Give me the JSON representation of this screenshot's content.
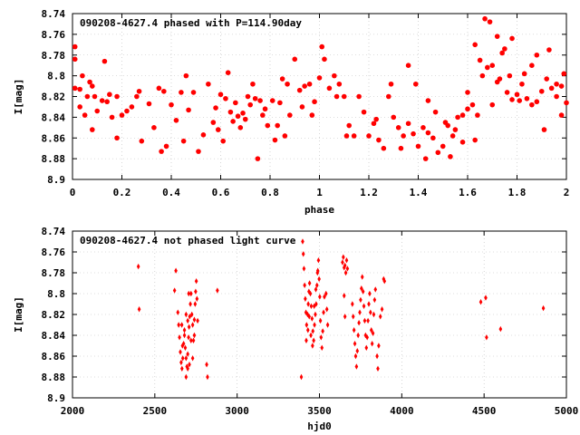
{
  "chart_data": [
    {
      "type": "scatter",
      "title": "090208-4627.4 phased with P=114.90day",
      "xlabel": "phase",
      "ylabel": "I[mag]",
      "xlim": [
        0,
        2
      ],
      "ylim": [
        8.9,
        8.74
      ],
      "y_inverted": true,
      "grid": true,
      "color": "#ff0000",
      "marker": "filled-circle",
      "x_ticks": [
        "0",
        "0.2",
        "0.4",
        "0.6",
        "0.8",
        "1",
        "1.2",
        "1.4",
        "1.6",
        "1.8",
        "2"
      ],
      "y_ticks": [
        "8.74",
        "8.76",
        "8.78",
        "8.8",
        "8.82",
        "8.84",
        "8.86",
        "8.88",
        "8.9"
      ],
      "points": [
        [
          0.01,
          8.772
        ],
        [
          0.01,
          8.784
        ],
        [
          0.01,
          8.812
        ],
        [
          0.03,
          8.813
        ],
        [
          0.03,
          8.83
        ],
        [
          0.04,
          8.8
        ],
        [
          0.05,
          8.838
        ],
        [
          0.06,
          8.82
        ],
        [
          0.07,
          8.806
        ],
        [
          0.08,
          8.81
        ],
        [
          0.09,
          8.82
        ],
        [
          0.1,
          8.834
        ],
        [
          0.12,
          8.824
        ],
        [
          0.13,
          8.786
        ],
        [
          0.14,
          8.825
        ],
        [
          0.15,
          8.818
        ],
        [
          0.16,
          8.84
        ],
        [
          0.18,
          8.82
        ],
        [
          0.2,
          8.838
        ],
        [
          0.22,
          8.834
        ],
        [
          0.24,
          8.83
        ],
        [
          0.26,
          8.82
        ],
        [
          0.28,
          8.863
        ],
        [
          0.31,
          8.827
        ],
        [
          0.33,
          8.85
        ],
        [
          0.35,
          8.812
        ],
        [
          0.37,
          8.815
        ],
        [
          0.38,
          8.868
        ],
        [
          0.4,
          8.828
        ],
        [
          0.42,
          8.843
        ],
        [
          0.44,
          8.816
        ],
        [
          0.46,
          8.8
        ],
        [
          0.47,
          8.833
        ],
        [
          0.49,
          8.816
        ],
        [
          0.51,
          8.873
        ],
        [
          0.55,
          8.808
        ],
        [
          0.57,
          8.845
        ],
        [
          0.58,
          8.831
        ],
        [
          0.59,
          8.852
        ],
        [
          0.6,
          8.818
        ],
        [
          0.61,
          8.863
        ],
        [
          0.62,
          8.822
        ],
        [
          0.63,
          8.797
        ],
        [
          0.65,
          8.844
        ],
        [
          0.66,
          8.826
        ],
        [
          0.67,
          8.839
        ],
        [
          0.68,
          8.85
        ],
        [
          0.69,
          8.836
        ],
        [
          0.7,
          8.842
        ],
        [
          0.71,
          8.82
        ],
        [
          0.72,
          8.828
        ],
        [
          0.73,
          8.808
        ],
        [
          0.75,
          8.88
        ],
        [
          0.76,
          8.824
        ],
        [
          0.77,
          8.838
        ],
        [
          0.78,
          8.832
        ],
        [
          0.79,
          8.848
        ],
        [
          0.81,
          8.824
        ],
        [
          0.82,
          8.862
        ],
        [
          0.83,
          8.848
        ],
        [
          0.84,
          8.826
        ],
        [
          0.85,
          8.803
        ],
        [
          0.87,
          8.808
        ],
        [
          0.88,
          8.838
        ],
        [
          0.9,
          8.784
        ],
        [
          0.92,
          8.814
        ],
        [
          0.93,
          8.83
        ],
        [
          0.94,
          8.81
        ],
        [
          0.96,
          8.808
        ],
        [
          0.98,
          8.825
        ],
        [
          1.0,
          8.802
        ],
        [
          1.01,
          8.772
        ],
        [
          1.02,
          8.784
        ],
        [
          1.04,
          8.812
        ],
        [
          1.06,
          8.8
        ],
        [
          1.07,
          8.82
        ],
        [
          1.08,
          8.808
        ],
        [
          1.1,
          8.82
        ],
        [
          1.12,
          8.848
        ],
        [
          1.14,
          8.858
        ],
        [
          1.16,
          8.82
        ],
        [
          1.18,
          8.835
        ],
        [
          1.2,
          8.858
        ],
        [
          1.22,
          8.846
        ],
        [
          1.24,
          8.862
        ],
        [
          1.26,
          8.87
        ],
        [
          1.28,
          8.82
        ],
        [
          1.3,
          8.84
        ],
        [
          1.32,
          8.85
        ],
        [
          1.34,
          8.858
        ],
        [
          1.36,
          8.846
        ],
        [
          1.38,
          8.856
        ],
        [
          1.4,
          8.868
        ],
        [
          1.42,
          8.85
        ],
        [
          1.44,
          8.855
        ],
        [
          1.46,
          8.86
        ],
        [
          1.48,
          8.874
        ],
        [
          1.5,
          8.868
        ],
        [
          1.52,
          8.848
        ],
        [
          1.54,
          8.858
        ],
        [
          1.56,
          8.84
        ],
        [
          1.58,
          8.838
        ],
        [
          1.6,
          8.832
        ],
        [
          1.62,
          8.828
        ],
        [
          1.64,
          8.838
        ],
        [
          1.66,
          8.8
        ],
        [
          1.68,
          8.792
        ],
        [
          1.7,
          8.828
        ],
        [
          1.72,
          8.806
        ],
        [
          1.74,
          8.778
        ],
        [
          1.76,
          8.816
        ],
        [
          1.78,
          8.823
        ],
        [
          1.8,
          8.818
        ],
        [
          1.82,
          8.808
        ],
        [
          1.84,
          8.822
        ],
        [
          1.86,
          8.79
        ],
        [
          1.88,
          8.78
        ],
        [
          1.9,
          8.815
        ],
        [
          1.92,
          8.803
        ],
        [
          1.94,
          8.812
        ],
        [
          1.96,
          8.82
        ],
        [
          1.98,
          8.838
        ],
        [
          2.0,
          8.826
        ],
        [
          0.08,
          8.852
        ],
        [
          0.18,
          8.86
        ],
        [
          0.27,
          8.815
        ],
        [
          0.36,
          8.873
        ],
        [
          0.45,
          8.863
        ],
        [
          0.53,
          8.857
        ],
        [
          0.64,
          8.835
        ],
        [
          0.74,
          8.822
        ],
        [
          0.86,
          8.858
        ],
        [
          0.97,
          8.838
        ],
        [
          1.11,
          8.858
        ],
        [
          1.23,
          8.842
        ],
        [
          1.33,
          8.87
        ],
        [
          1.43,
          8.88
        ],
        [
          1.53,
          8.878
        ],
        [
          1.63,
          8.862
        ],
        [
          1.67,
          8.745
        ],
        [
          1.69,
          8.748
        ],
        [
          1.72,
          8.762
        ],
        [
          1.75,
          8.774
        ],
        [
          1.78,
          8.764
        ],
        [
          1.83,
          8.798
        ],
        [
          1.86,
          8.828
        ],
        [
          1.88,
          8.825
        ],
        [
          1.91,
          8.852
        ],
        [
          1.93,
          8.775
        ],
        [
          1.96,
          8.808
        ],
        [
          1.98,
          8.81
        ],
        [
          1.99,
          8.798
        ],
        [
          1.29,
          8.808
        ],
        [
          1.36,
          8.79
        ],
        [
          1.39,
          8.808
        ],
        [
          1.44,
          8.824
        ],
        [
          1.47,
          8.835
        ],
        [
          1.51,
          8.845
        ],
        [
          1.55,
          8.852
        ],
        [
          1.58,
          8.864
        ],
        [
          1.6,
          8.816
        ],
        [
          1.63,
          8.77
        ],
        [
          1.65,
          8.785
        ],
        [
          1.7,
          8.79
        ],
        [
          1.73,
          8.803
        ],
        [
          1.77,
          8.8
        ],
        [
          1.81,
          8.824
        ]
      ]
    },
    {
      "type": "scatter",
      "title": "090208-4627.4 not phased light curve",
      "xlabel": "hjd0",
      "ylabel": "I[mag]",
      "xlim": [
        2000,
        5000
      ],
      "ylim": [
        8.9,
        8.74
      ],
      "y_inverted": true,
      "grid": true,
      "color": "#ff0000",
      "marker": "diamond",
      "x_ticks": [
        "2000",
        "2500",
        "3000",
        "3500",
        "4000",
        "4500",
        "5000"
      ],
      "y_ticks": [
        "8.74",
        "8.76",
        "8.78",
        "8.8",
        "8.82",
        "8.84",
        "8.86",
        "8.88",
        "8.9"
      ],
      "points": [
        [
          2400,
          8.774
        ],
        [
          2405,
          8.815
        ],
        [
          2620,
          8.797
        ],
        [
          2628,
          8.778
        ],
        [
          2640,
          8.818
        ],
        [
          2645,
          8.83
        ],
        [
          2650,
          8.842
        ],
        [
          2655,
          8.856
        ],
        [
          2660,
          8.866
        ],
        [
          2665,
          8.872
        ],
        [
          2670,
          8.862
        ],
        [
          2675,
          8.848
        ],
        [
          2680,
          8.84
        ],
        [
          2685,
          8.852
        ],
        [
          2690,
          8.88
        ],
        [
          2695,
          8.87
        ],
        [
          2700,
          8.858
        ],
        [
          2705,
          8.842
        ],
        [
          2708,
          8.832
        ],
        [
          2712,
          8.822
        ],
        [
          2716,
          8.81
        ],
        [
          2720,
          8.8
        ],
        [
          2725,
          8.82
        ],
        [
          2730,
          8.83
        ],
        [
          2735,
          8.845
        ],
        [
          2740,
          8.825
        ],
        [
          2745,
          8.81
        ],
        [
          2748,
          8.798
        ],
        [
          2752,
          8.788
        ],
        [
          2756,
          8.805
        ],
        [
          2760,
          8.826
        ],
        [
          2700,
          8.826
        ],
        [
          2706,
          8.8
        ],
        [
          2690,
          8.82
        ],
        [
          2680,
          8.835
        ],
        [
          2664,
          8.83
        ],
        [
          2668,
          8.85
        ],
        [
          2720,
          8.845
        ],
        [
          2730,
          8.862
        ],
        [
          2740,
          8.84
        ],
        [
          2710,
          8.868
        ],
        [
          2700,
          8.872
        ],
        [
          2690,
          8.862
        ],
        [
          2815,
          8.868
        ],
        [
          2820,
          8.88
        ],
        [
          2880,
          8.797
        ],
        [
          3390,
          8.88
        ],
        [
          3398,
          8.75
        ],
        [
          3402,
          8.762
        ],
        [
          3406,
          8.776
        ],
        [
          3410,
          8.792
        ],
        [
          3414,
          8.805
        ],
        [
          3418,
          8.818
        ],
        [
          3422,
          8.83
        ],
        [
          3428,
          8.82
        ],
        [
          3432,
          8.81
        ],
        [
          3436,
          8.798
        ],
        [
          3440,
          8.79
        ],
        [
          3445,
          8.8
        ],
        [
          3450,
          8.812
        ],
        [
          3455,
          8.824
        ],
        [
          3460,
          8.836
        ],
        [
          3465,
          8.845
        ],
        [
          3470,
          8.83
        ],
        [
          3475,
          8.82
        ],
        [
          3480,
          8.81
        ],
        [
          3485,
          8.792
        ],
        [
          3490,
          8.778
        ],
        [
          3494,
          8.768
        ],
        [
          3498,
          8.786
        ],
        [
          3502,
          8.803
        ],
        [
          3506,
          8.826
        ],
        [
          3510,
          8.842
        ],
        [
          3515,
          8.852
        ],
        [
          3520,
          8.836
        ],
        [
          3525,
          8.818
        ],
        [
          3530,
          8.803
        ],
        [
          3540,
          8.8
        ],
        [
          3545,
          8.815
        ],
        [
          3550,
          8.83
        ],
        [
          3420,
          8.845
        ],
        [
          3430,
          8.835
        ],
        [
          3438,
          8.822
        ],
        [
          3448,
          8.84
        ],
        [
          3458,
          8.85
        ],
        [
          3468,
          8.812
        ],
        [
          3478,
          8.796
        ],
        [
          3488,
          8.78
        ],
        [
          3640,
          8.77
        ],
        [
          3645,
          8.765
        ],
        [
          3650,
          8.775
        ],
        [
          3655,
          8.773
        ],
        [
          3660,
          8.78
        ],
        [
          3665,
          8.768
        ],
        [
          3670,
          8.776
        ],
        [
          3650,
          8.802
        ],
        [
          3655,
          8.822
        ],
        [
          3700,
          8.81
        ],
        [
          3705,
          8.822
        ],
        [
          3710,
          8.835
        ],
        [
          3715,
          8.848
        ],
        [
          3720,
          8.86
        ],
        [
          3725,
          8.87
        ],
        [
          3730,
          8.855
        ],
        [
          3735,
          8.84
        ],
        [
          3740,
          8.828
        ],
        [
          3745,
          8.818
        ],
        [
          3750,
          8.806
        ],
        [
          3755,
          8.795
        ],
        [
          3760,
          8.784
        ],
        [
          3765,
          8.798
        ],
        [
          3770,
          8.812
        ],
        [
          3775,
          8.826
        ],
        [
          3780,
          8.84
        ],
        [
          3785,
          8.852
        ],
        [
          3790,
          8.842
        ],
        [
          3795,
          8.826
        ],
        [
          3800,
          8.81
        ],
        [
          3805,
          8.8
        ],
        [
          3810,
          8.818
        ],
        [
          3815,
          8.835
        ],
        [
          3820,
          8.848
        ],
        [
          3825,
          8.838
        ],
        [
          3830,
          8.82
        ],
        [
          3835,
          8.806
        ],
        [
          3840,
          8.796
        ],
        [
          3850,
          8.86
        ],
        [
          3855,
          8.872
        ],
        [
          3860,
          8.85
        ],
        [
          3870,
          8.822
        ],
        [
          3880,
          8.815
        ],
        [
          3890,
          8.786
        ],
        [
          3895,
          8.788
        ],
        [
          4480,
          8.808
        ],
        [
          4510,
          8.804
        ],
        [
          4515,
          8.842
        ],
        [
          4600,
          8.834
        ],
        [
          4860,
          8.814
        ]
      ]
    }
  ]
}
